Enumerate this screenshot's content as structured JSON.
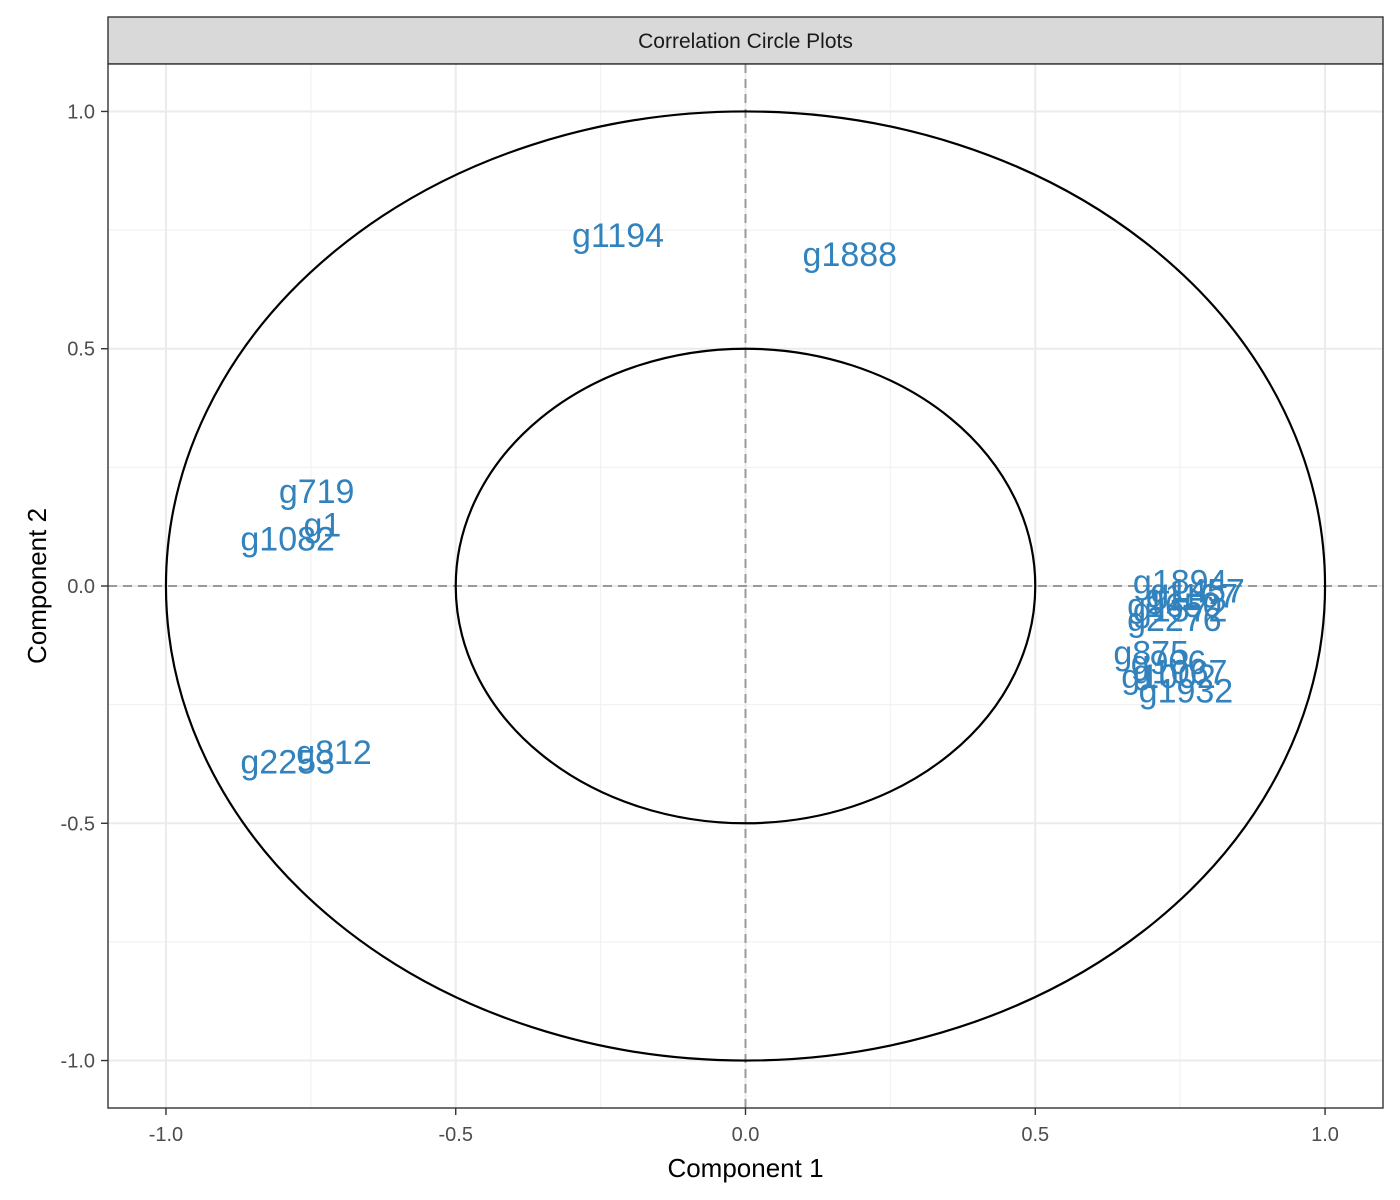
{
  "chart_data": {
    "type": "scatter",
    "title": "Correlation Circle Plots",
    "xlabel": "Component  1",
    "ylabel": "Component  2",
    "xlim": [
      -1.1,
      1.1
    ],
    "ylim": [
      -1.1,
      1.1
    ],
    "x_ticks": [
      -1.0,
      -0.5,
      0.0,
      0.5,
      1.0
    ],
    "y_ticks": [
      -1.0,
      -0.5,
      0.0,
      0.5,
      1.0
    ],
    "x_tick_labels": [
      "-1.0",
      "-0.5",
      "0.0",
      "0.5",
      "1.0"
    ],
    "y_tick_labels": [
      "-1.0",
      "-0.5",
      "0.0",
      "0.5",
      "1.0"
    ],
    "grid": true,
    "reference_lines": {
      "x": 0,
      "y": 0,
      "style": "dashed"
    },
    "circles": [
      {
        "radius": 1.0
      },
      {
        "radius": 0.5
      }
    ],
    "label_color": "#3182bd",
    "variables": [
      {
        "name": "g1194",
        "x": -0.22,
        "y": 0.74
      },
      {
        "name": "g1888",
        "x": 0.18,
        "y": 0.7
      },
      {
        "name": "g719",
        "x": -0.74,
        "y": 0.2
      },
      {
        "name": "g1",
        "x": -0.73,
        "y": 0.13
      },
      {
        "name": "g1082",
        "x": -0.79,
        "y": 0.1
      },
      {
        "name": "g812",
        "x": -0.71,
        "y": -0.35
      },
      {
        "name": "g2253",
        "x": -0.79,
        "y": -0.37
      },
      {
        "name": "g1894",
        "x": 0.75,
        "y": 0.01
      },
      {
        "name": "g1457",
        "x": 0.78,
        "y": -0.01
      },
      {
        "name": "g1167",
        "x": 0.77,
        "y": -0.02
      },
      {
        "name": "g1650",
        "x": 0.74,
        "y": -0.04
      },
      {
        "name": "g1572",
        "x": 0.75,
        "y": -0.05
      },
      {
        "name": "g2276",
        "x": 0.74,
        "y": -0.07
      },
      {
        "name": "g875",
        "x": 0.7,
        "y": -0.14
      },
      {
        "name": "g906",
        "x": 0.73,
        "y": -0.16
      },
      {
        "name": "g1067",
        "x": 0.75,
        "y": -0.18
      },
      {
        "name": "g1002",
        "x": 0.73,
        "y": -0.19
      },
      {
        "name": "g1932",
        "x": 0.76,
        "y": -0.22
      }
    ]
  }
}
